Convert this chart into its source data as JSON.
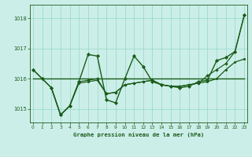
{
  "title": "Graphe pression niveau de la mer (hPa)",
  "bg_color": "#cceee8",
  "grid_color": "#99ddcc",
  "line_color": "#1a5c1a",
  "xlim": [
    -0.3,
    23.3
  ],
  "ylim": [
    1014.55,
    1018.45
  ],
  "yticks": [
    1015,
    1016,
    1017,
    1018
  ],
  "xticks": [
    0,
    1,
    2,
    3,
    4,
    5,
    6,
    7,
    8,
    9,
    10,
    11,
    12,
    13,
    14,
    15,
    16,
    17,
    18,
    19,
    20,
    21,
    22,
    23
  ],
  "series": [
    {
      "x": [
        0,
        1,
        2,
        3,
        4,
        5,
        6,
        7,
        8,
        9,
        10,
        11,
        12,
        13,
        14,
        15,
        16,
        17,
        18,
        19,
        20,
        21,
        22,
        23
      ],
      "y": [
        1016.3,
        1016.0,
        1015.7,
        1014.8,
        1015.1,
        1015.9,
        1016.8,
        1016.75,
        1015.3,
        1015.2,
        1016.0,
        1016.75,
        1016.4,
        1015.9,
        1015.8,
        1015.75,
        1015.7,
        1015.75,
        1015.9,
        1015.95,
        1016.6,
        1016.7,
        1016.9,
        1018.1
      ],
      "marker": "D",
      "markersize": 2.2,
      "linewidth": 1.0
    },
    {
      "x": [
        0,
        1,
        2,
        3,
        4,
        5,
        6,
        7,
        8,
        9,
        10,
        11,
        12,
        13,
        14,
        15,
        16,
        17,
        18,
        19,
        20,
        21,
        22,
        23
      ],
      "y": [
        1016.0,
        1016.0,
        1016.0,
        1016.0,
        1016.0,
        1016.0,
        1016.0,
        1016.0,
        1016.0,
        1016.0,
        1016.0,
        1016.0,
        1016.0,
        1016.0,
        1016.0,
        1016.0,
        1016.0,
        1016.0,
        1016.0,
        1016.0,
        1016.0,
        1016.0,
        1016.0,
        1016.0
      ],
      "marker": null,
      "markersize": 0,
      "linewidth": 1.0
    },
    {
      "x": [
        2,
        3,
        4,
        5,
        6,
        7,
        8,
        9,
        10,
        11,
        12,
        13,
        14,
        15,
        16,
        17,
        18,
        19,
        20,
        21,
        22,
        23
      ],
      "y": [
        1015.7,
        1014.8,
        1015.1,
        1015.85,
        1015.9,
        1015.95,
        1015.5,
        1015.55,
        1015.8,
        1015.85,
        1015.9,
        1015.95,
        1015.8,
        1015.75,
        1015.75,
        1015.8,
        1015.85,
        1015.9,
        1016.0,
        1016.3,
        1016.55,
        1016.65
      ],
      "marker": "o",
      "markersize": 1.8,
      "linewidth": 0.9
    },
    {
      "x": [
        0,
        1,
        2,
        3,
        4,
        5,
        6,
        7,
        8,
        9,
        10,
        11,
        12,
        13,
        14,
        15,
        16,
        17,
        18,
        19,
        20,
        21,
        22,
        23
      ],
      "y": [
        1016.3,
        1016.0,
        1015.7,
        1014.8,
        1015.1,
        1015.9,
        1015.95,
        1016.0,
        1015.5,
        1015.55,
        1015.8,
        1015.85,
        1015.9,
        1015.95,
        1015.8,
        1015.75,
        1015.75,
        1015.8,
        1015.85,
        1016.1,
        1016.3,
        1016.5,
        1016.9,
        1018.1
      ],
      "marker": "D",
      "markersize": 1.8,
      "linewidth": 0.85
    }
  ]
}
